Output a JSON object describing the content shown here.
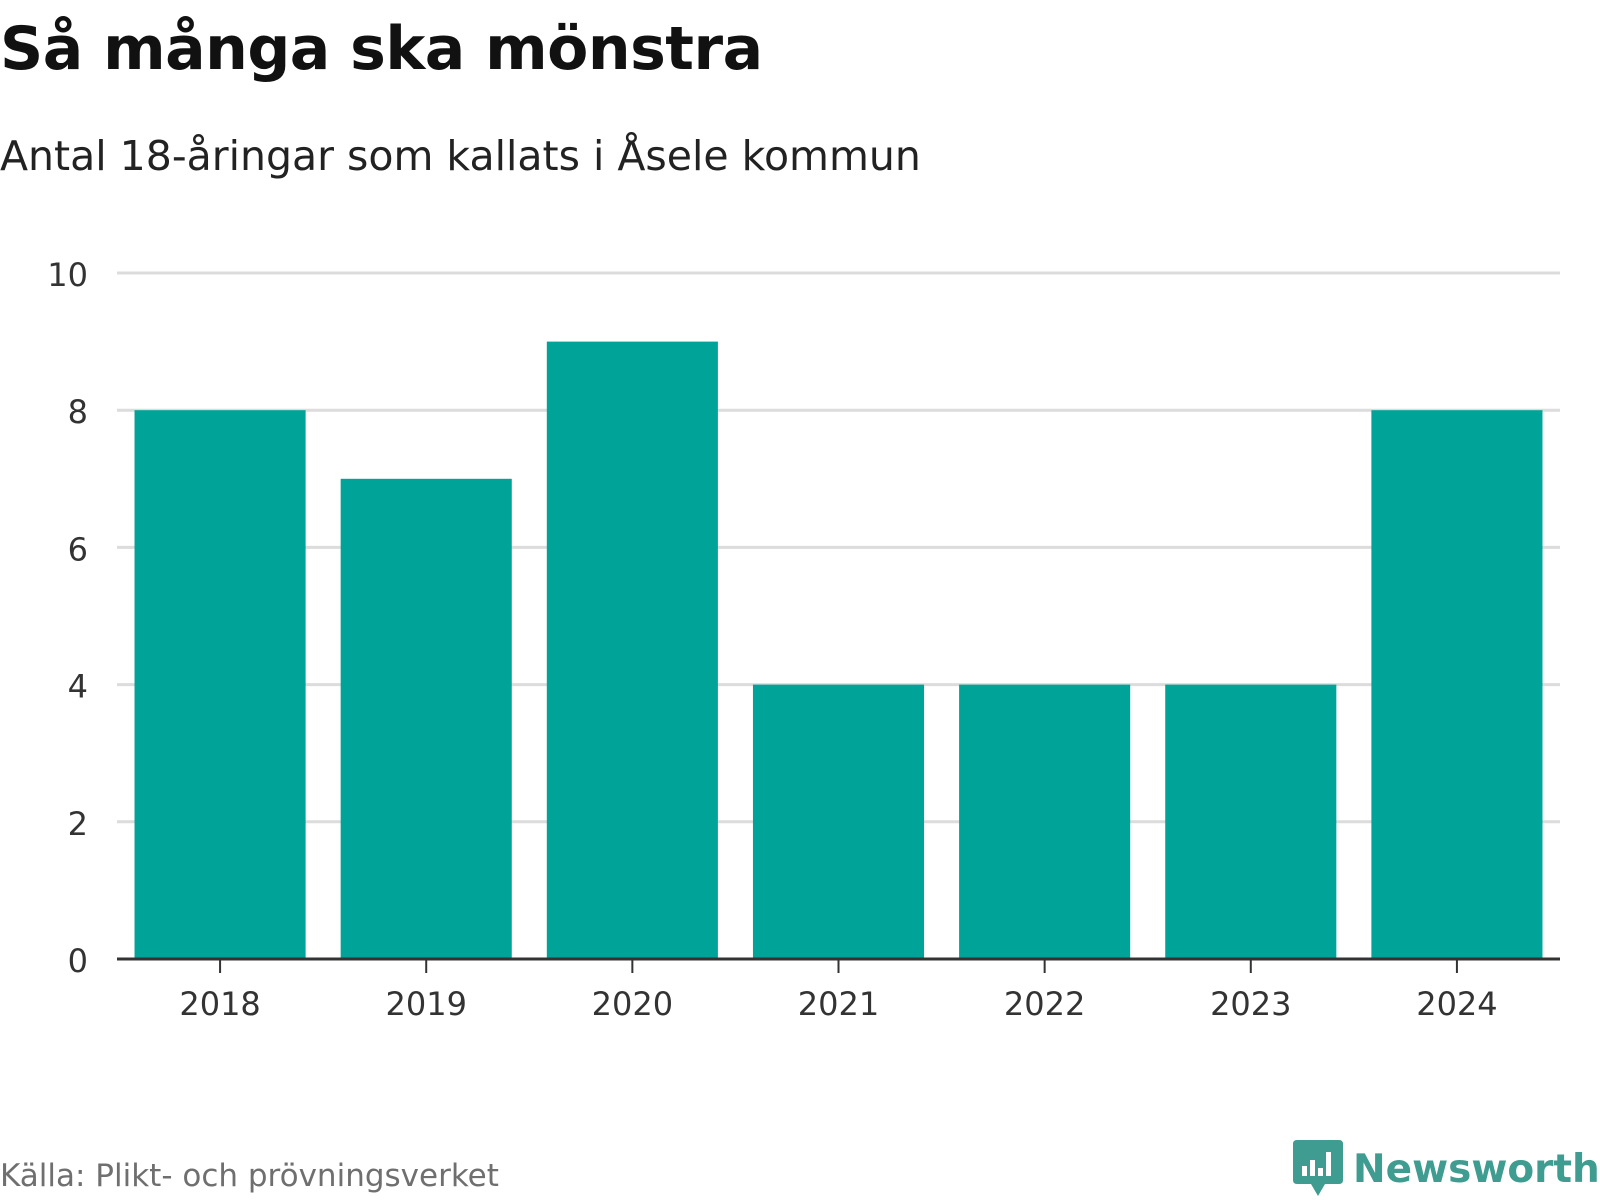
{
  "chart_data": {
    "type": "bar",
    "title": "Så många ska mönstra",
    "subtitle": "Antal 18-åringar som kallats i Åsele kommun",
    "categories": [
      "2018",
      "2019",
      "2020",
      "2021",
      "2022",
      "2023",
      "2024"
    ],
    "values": [
      8,
      7,
      9,
      4,
      4,
      4,
      8
    ],
    "ylim": [
      0,
      10
    ],
    "yticks": [
      0,
      2,
      4,
      6,
      8,
      10
    ],
    "xlabel": "",
    "ylabel": "",
    "grid": true,
    "bar_color": "#00a398",
    "source": "Källa: Plikt- och prövningsverket"
  },
  "brand": {
    "name": "Newsworthy",
    "color": "#3f9c90",
    "icon": "chat-bar-chart-icon"
  }
}
